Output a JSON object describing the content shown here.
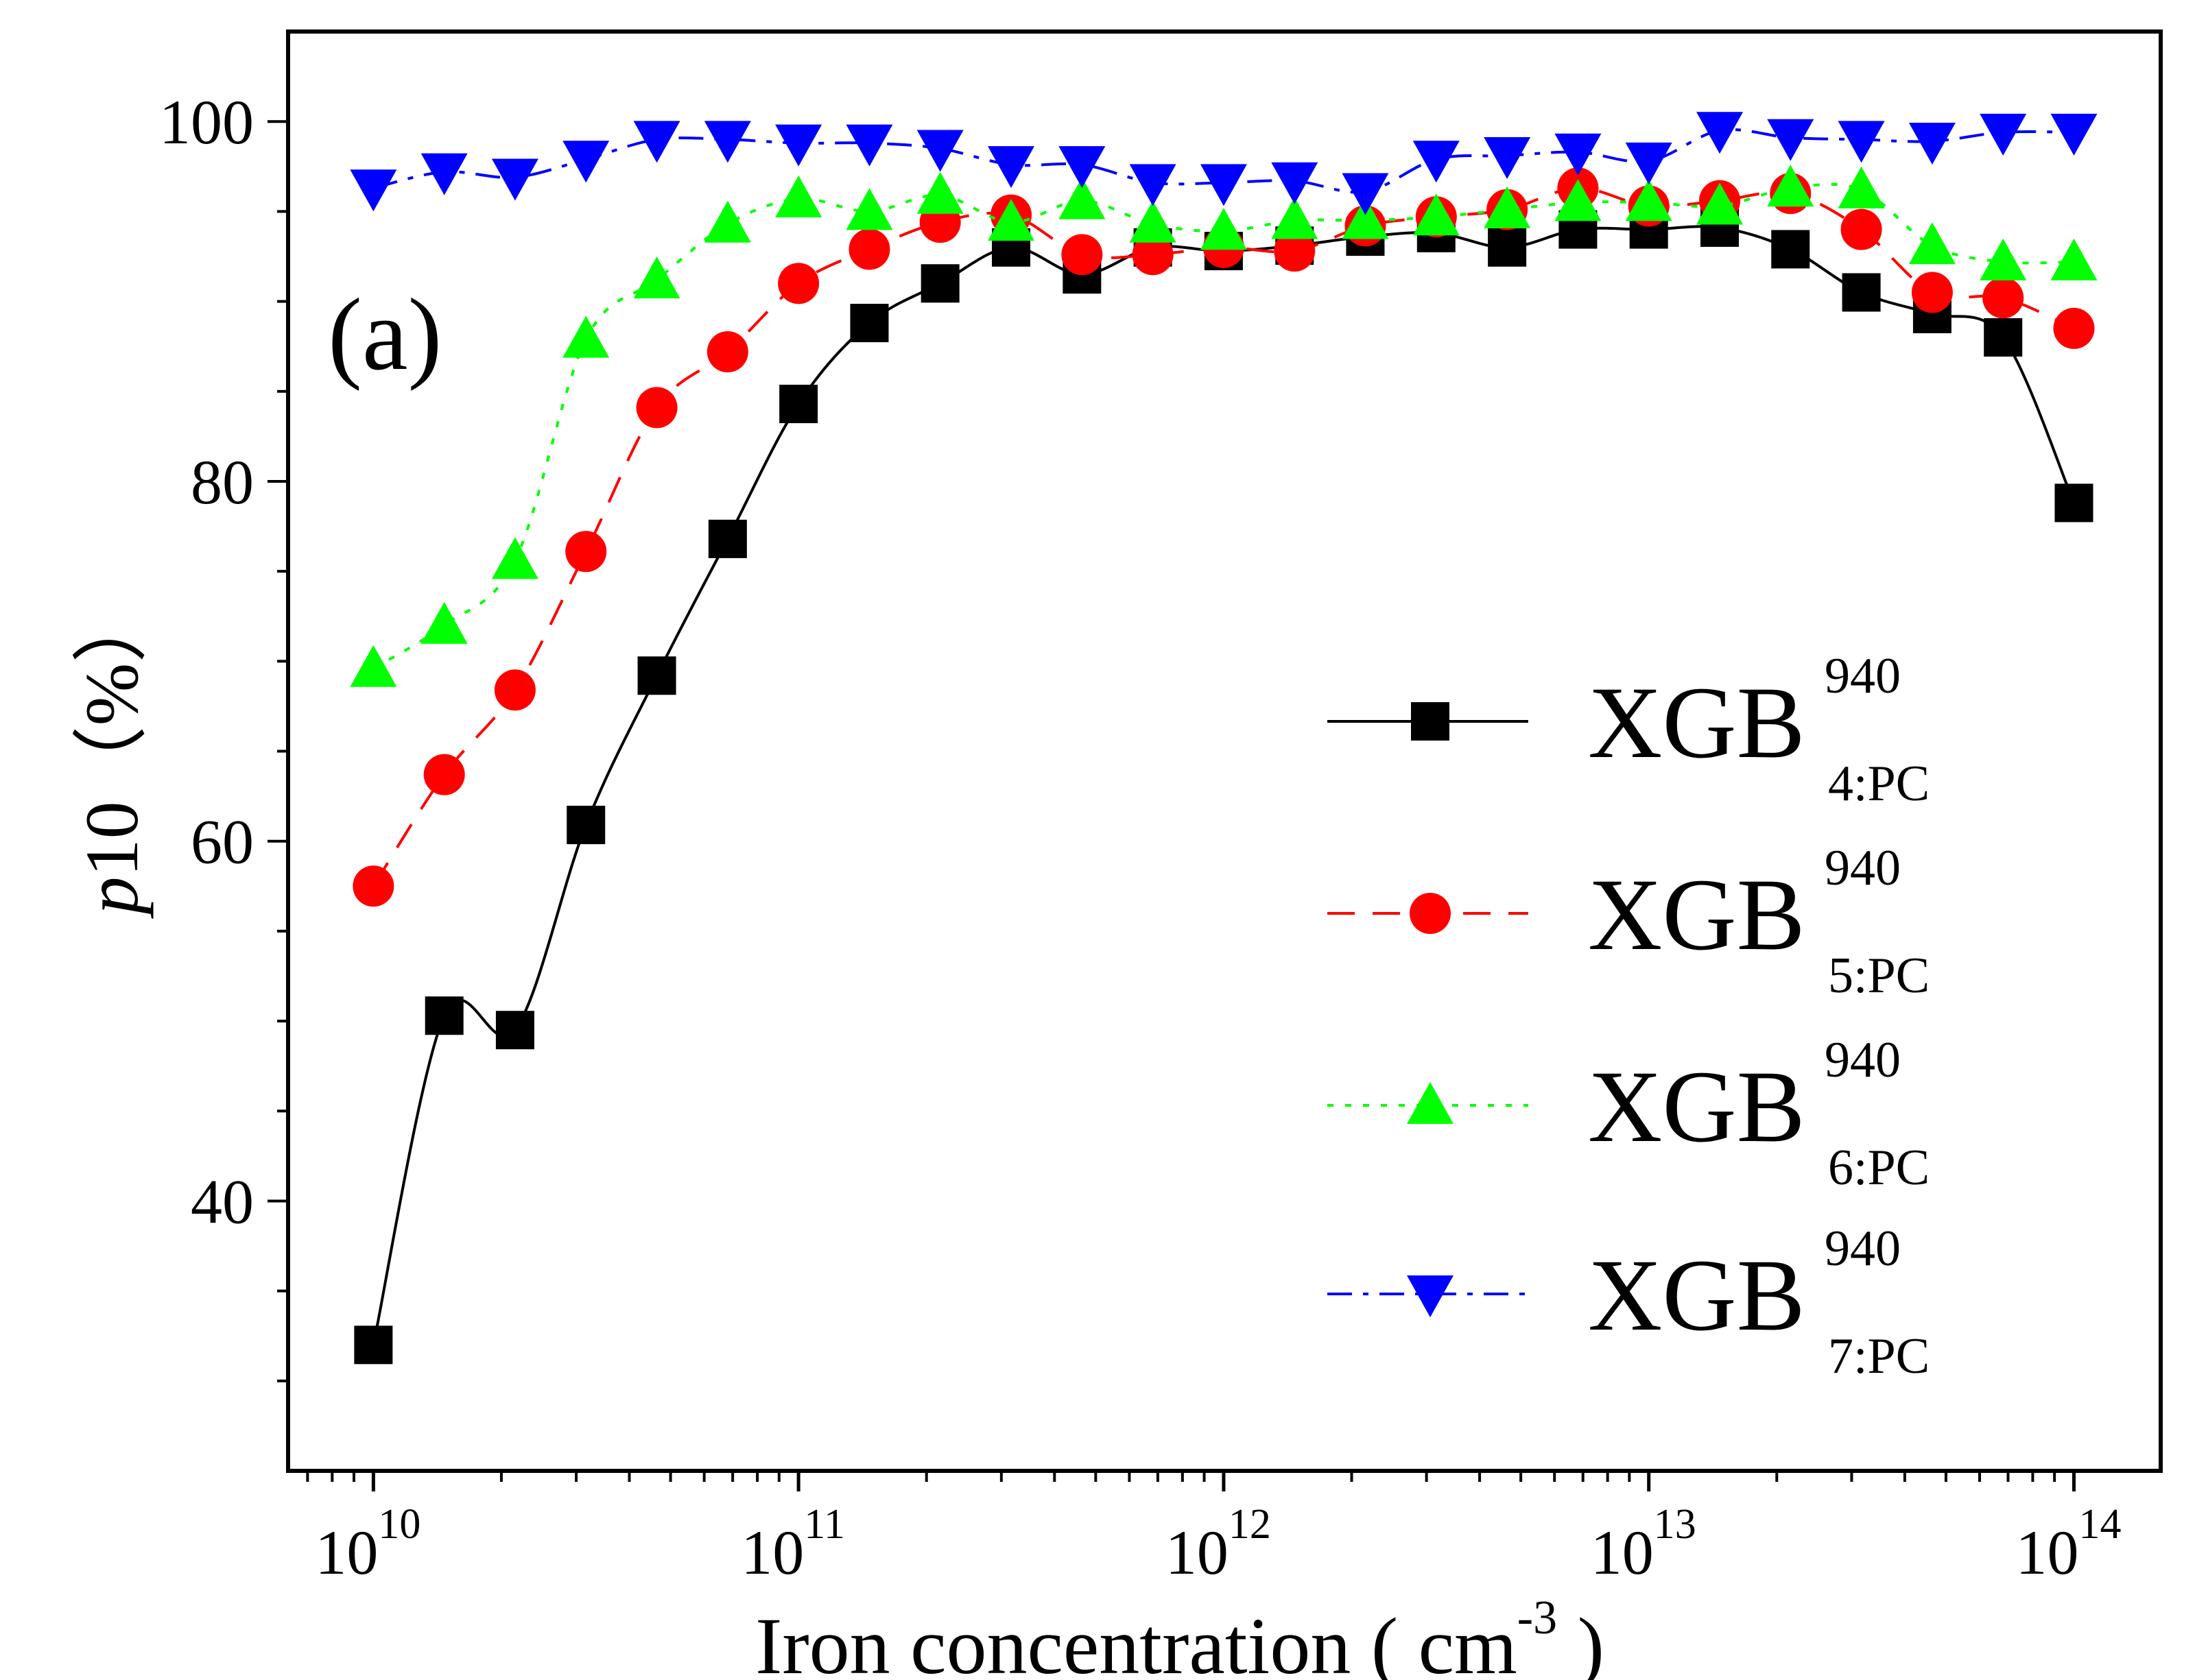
{
  "chart_data": {
    "type": "line",
    "panel_label": "(a)",
    "xlabel": "Iron concentration",
    "xlabel_unit": {
      "open": "(",
      "base": "cm",
      "exp": "-3",
      "close": ")"
    },
    "ylabel": {
      "var": "p",
      "rest": "10",
      "unit": "（%）"
    },
    "x_scale": "log",
    "xlim": [
      6300000000.0,
      160000000000000.0
    ],
    "ylim": [
      25,
      105
    ],
    "x_ticks": [
      {
        "value": 10000000000.0,
        "base": "10",
        "exp": "10"
      },
      {
        "value": 100000000000.0,
        "base": "10",
        "exp": "11"
      },
      {
        "value": 1000000000000.0,
        "base": "10",
        "exp": "12"
      },
      {
        "value": 10000000000000.0,
        "base": "10",
        "exp": "13"
      },
      {
        "value": 100000000000000.0,
        "base": "10",
        "exp": "14"
      }
    ],
    "y_ticks": [
      {
        "value": 40,
        "label": "40"
      },
      {
        "value": 60,
        "label": "60"
      },
      {
        "value": 80,
        "label": "80"
      },
      {
        "value": 100,
        "label": "100"
      }
    ],
    "grid": false,
    "legend_position": "right",
    "x": [
      10000000000.0,
      14680000000.0,
      21540000000.0,
      31620000000.0,
      46420000000.0,
      68130000000.0,
      100000000000.0,
      146800000000.0,
      215400000000.0,
      316200000000.0,
      464200000000.0,
      681300000000.0,
      1000000000000.0,
      1468000000000.0,
      2154000000000.0,
      3162000000000.0,
      4642000000000.0,
      6813000000000.0,
      10000000000000.0,
      14680000000000.0,
      21540000000000.0,
      31620000000000.0,
      46420000000000.0,
      68130000000000.0,
      100000000000000.0
    ],
    "series": [
      {
        "name": "XGB",
        "name_sup": "940",
        "name_sub": "4:PC",
        "color": "#000000",
        "marker": "square",
        "line": "solid",
        "values": [
          32,
          50.3,
          49.5,
          60.9,
          69.2,
          76.8,
          84.3,
          88.8,
          91.0,
          93.0,
          91.5,
          93.0,
          92.8,
          93.1,
          93.6,
          93.8,
          93.0,
          94.0,
          94.0,
          94.1,
          92.9,
          90.5,
          89.3,
          88.0,
          78.8
        ]
      },
      {
        "name": "XGB",
        "name_sup": "940",
        "name_sub": "5:PC",
        "color": "#ff0000",
        "marker": "circle",
        "line": "dashed",
        "values": [
          57.5,
          63.7,
          68.4,
          76.1,
          84.1,
          87.2,
          91.0,
          92.9,
          94.4,
          94.8,
          92.6,
          92.6,
          93.0,
          92.8,
          94.2,
          94.7,
          95.1,
          96.3,
          95.3,
          95.6,
          96.0,
          94.0,
          90.5,
          90.2,
          88.5
        ]
      },
      {
        "name": "XGB",
        "name_sup": "940",
        "name_sub": "6:PC",
        "color": "#00ff00",
        "marker": "triangle-up",
        "line": "dotted",
        "values": [
          69.6,
          72.0,
          75.6,
          87.9,
          91.2,
          94.3,
          95.7,
          95.0,
          95.9,
          94.4,
          95.6,
          94.3,
          93.9,
          94.5,
          94.5,
          94.7,
          95.1,
          95.5,
          95.5,
          95.3,
          96.3,
          96.2,
          93.1,
          92.2,
          92.2
        ]
      },
      {
        "name": "XGB",
        "name_sup": "940",
        "name_sub": "7:PC",
        "color": "#0000ff",
        "marker": "triangle-down",
        "line": "dashdot",
        "values": [
          96.3,
          97.2,
          96.9,
          97.9,
          99.0,
          99.0,
          98.8,
          98.8,
          98.5,
          97.6,
          97.6,
          96.6,
          96.6,
          96.7,
          96.1,
          97.9,
          98.1,
          98.3,
          97.8,
          99.5,
          99.1,
          99.0,
          98.9,
          99.4,
          99.4
        ]
      }
    ]
  }
}
